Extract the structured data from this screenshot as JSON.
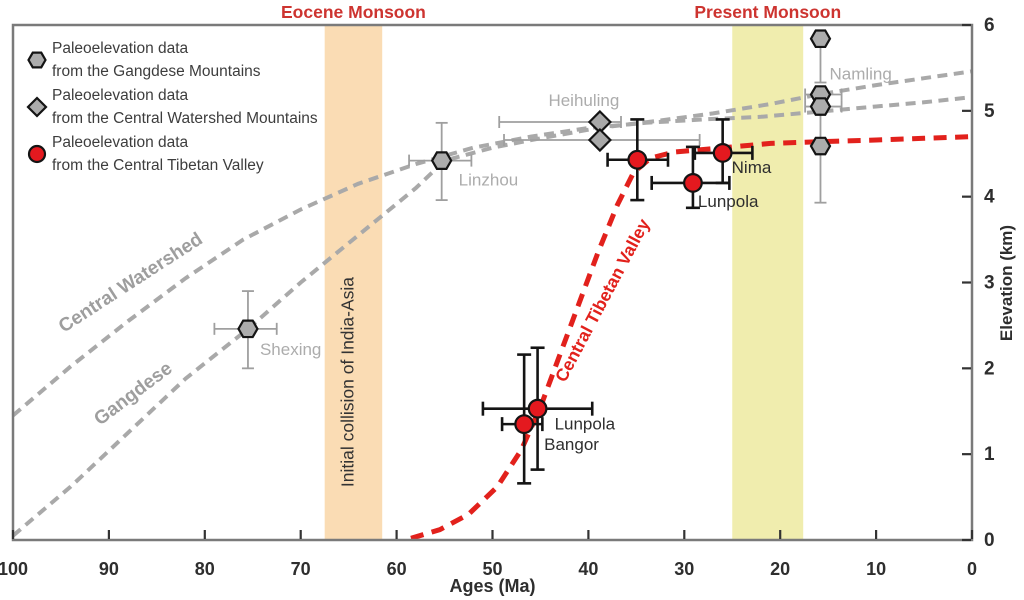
{
  "colors": {
    "accent_red": "#CD3430",
    "marker_red": "#E4191F",
    "marker_gray": "#ACACAC",
    "marker_stroke": "#141414",
    "curve_gray": "#A9A9A9",
    "curve_red": "#E2211C",
    "band_orange": "#FADCB4",
    "band_yellow": "#F0EDAE",
    "text_dark": "#2E2E2E",
    "text_gray": "#ACACAC",
    "frame_gray": "#7A7A7A",
    "error_gray": "#9F9F9F",
    "error_black": "#141414"
  },
  "legend": {
    "items": [
      {
        "marker": "hexagon",
        "line1": "Paleoelevation data",
        "line2": "from the Gangdese Mountains"
      },
      {
        "marker": "diamond",
        "line1": "Paleoelevation data",
        "line2": "from the Central Watershed Mountains"
      },
      {
        "marker": "circle",
        "line1": "Paleoelevation data",
        "line2": "from the Central Tibetan Valley"
      }
    ]
  },
  "chart_data": {
    "type": "scatter",
    "xlabel": "Ages (Ma)",
    "ylabel": "Elevation (km)",
    "x_range": [
      100,
      0
    ],
    "y_range": [
      0,
      6
    ],
    "x_ticks": [
      100,
      90,
      80,
      70,
      60,
      50,
      40,
      30,
      20,
      10,
      0
    ],
    "y_ticks": [
      0,
      1,
      2,
      3,
      4,
      5,
      6
    ],
    "bands": [
      {
        "label": "Eocene Monsoon",
        "x_from": 67.5,
        "x_to": 61.5,
        "color": "#FADCB4",
        "annotation": "Initial collision of India-Asia"
      },
      {
        "label": "Present Monsoon",
        "x_from": 25.0,
        "x_to": 17.6,
        "color": "#F0EDAE"
      }
    ],
    "curves": [
      {
        "name": "Gangdese",
        "label": "Gangdese",
        "color": "#A9A9A9",
        "width": 4,
        "dash": "10,6.5",
        "label_age": 87.1,
        "label_elev": 1.65,
        "label_angle": -37,
        "label_color": "#9E9E9E",
        "label_size": 19,
        "points": [
          [
            100,
            0.05
          ],
          [
            94,
            0.62
          ],
          [
            88,
            1.25
          ],
          [
            82,
            1.88
          ],
          [
            75.5,
            2.46
          ],
          [
            70,
            3.0
          ],
          [
            64,
            3.55
          ],
          [
            58,
            4.1
          ],
          [
            55,
            4.42
          ],
          [
            50,
            4.57
          ],
          [
            45,
            4.68
          ],
          [
            39,
            4.8
          ],
          [
            33,
            4.88
          ],
          [
            27,
            4.97
          ],
          [
            21,
            5.08
          ],
          [
            16,
            5.19
          ],
          [
            10,
            5.3
          ],
          [
            5,
            5.38
          ],
          [
            0,
            5.46
          ]
        ]
      },
      {
        "name": "Central Watershed",
        "label": "Central Watershed",
        "color": "#A9A9A9",
        "width": 4,
        "dash": "10,6.5",
        "label_age": 87.4,
        "label_elev": 2.94,
        "label_angle": -33,
        "label_color": "#9E9E9E",
        "label_size": 19,
        "points": [
          [
            100,
            1.45
          ],
          [
            94,
            2.02
          ],
          [
            88,
            2.55
          ],
          [
            82,
            3.05
          ],
          [
            76,
            3.5
          ],
          [
            70,
            3.85
          ],
          [
            64,
            4.15
          ],
          [
            58,
            4.38
          ],
          [
            52,
            4.57
          ],
          [
            46,
            4.7
          ],
          [
            40,
            4.8
          ],
          [
            34,
            4.86
          ],
          [
            28,
            4.9
          ],
          [
            22,
            4.93
          ],
          [
            16,
            4.99
          ],
          [
            10,
            5.05
          ],
          [
            5,
            5.1
          ],
          [
            0,
            5.16
          ]
        ]
      },
      {
        "name": "Central Tibetan Valley",
        "label": "Central Tibetan Valley",
        "color": "#E2211C",
        "width": 5,
        "dash": "13,8.5",
        "label_age": 38.0,
        "label_elev": 2.76,
        "label_angle": -62,
        "label_color": "#E2211C",
        "label_size": 17.5,
        "points": [
          [
            58.5,
            0.02
          ],
          [
            55.5,
            0.12
          ],
          [
            52.5,
            0.3
          ],
          [
            49.5,
            0.62
          ],
          [
            47,
            1.05
          ],
          [
            45,
            1.55
          ],
          [
            43,
            2.15
          ],
          [
            41,
            2.75
          ],
          [
            39,
            3.35
          ],
          [
            37,
            3.9
          ],
          [
            35.3,
            4.28
          ],
          [
            33.5,
            4.45
          ],
          [
            31,
            4.52
          ],
          [
            28,
            4.55
          ],
          [
            25,
            4.58
          ],
          [
            21,
            4.62
          ],
          [
            16,
            4.64
          ],
          [
            10,
            4.66
          ],
          [
            5,
            4.68
          ],
          [
            0,
            4.7
          ]
        ]
      }
    ],
    "series": [
      {
        "name": "Gangdese Mountains",
        "marker": "hexagon",
        "marker_fill": "#ACACAC",
        "marker_stroke": "#141414",
        "err_color": "#9F9F9F",
        "err_width": 1.8,
        "cap": 6,
        "label_color": "#ACACAC",
        "points": [
          {
            "label": "Shexing",
            "age": 75.5,
            "elev": 2.46,
            "age_err": [
              79,
              72.5
            ],
            "elev_err": [
              2.9,
              2.0
            ],
            "label_dx": 12,
            "label_dy": 26
          },
          {
            "label": "Linzhou",
            "age": 55.3,
            "elev": 4.42,
            "age_err": [
              58.7,
              52.2
            ],
            "elev_err": [
              4.86,
              3.96
            ],
            "label_dx": 17,
            "label_dy": 25
          },
          {
            "label": "Namling",
            "age": 15.8,
            "elev": 5.84,
            "elev_err": [
              5.84,
              5.33
            ],
            "label_dx": 9,
            "label_dy": 41
          },
          {
            "age": 15.8,
            "elev": 5.19,
            "age_err": [
              17.4,
              13.6
            ]
          },
          {
            "age": 15.8,
            "elev": 5.05,
            "age_err": [
              17.4,
              13.6
            ]
          },
          {
            "age": 15.8,
            "elev": 4.59,
            "elev_err": [
              5.05,
              3.93
            ]
          }
        ]
      },
      {
        "name": "Central Watershed Mountains",
        "marker": "diamond",
        "marker_fill": "#A8A8A8",
        "marker_stroke": "#141414",
        "err_color": "#9F9F9F",
        "err_width": 1.8,
        "cap": 6,
        "label_color": "#ACACAC",
        "points": [
          {
            "label": "Heihuling",
            "age": 38.8,
            "elev": 4.87,
            "age_err": [
              49.3,
              36.6
            ],
            "label_dx": -16,
            "label_dy": -16,
            "label_anchor": "middle"
          },
          {
            "age": 38.8,
            "elev": 4.66,
            "age_err": [
              48.8,
              28.4
            ]
          }
        ]
      },
      {
        "name": "Central Tibetan Valley",
        "marker": "circle",
        "marker_fill": "#E4191F",
        "marker_stroke": "#141414",
        "err_color": "#141414",
        "err_width": 2.6,
        "cap": 7,
        "label_color": "#2E2E2E",
        "points": [
          {
            "label": "Bangor",
            "age": 46.7,
            "elev": 1.35,
            "age_err": [
              49,
              44.8
            ],
            "elev_err": [
              2.16,
              0.66
            ],
            "label_dx": 20,
            "label_dy": 26
          },
          {
            "label": "Lunpola",
            "age": 45.3,
            "elev": 1.53,
            "age_err": [
              51,
              39.6
            ],
            "elev_err": [
              2.24,
              0.82
            ],
            "label_dx": 17,
            "label_dy": 21
          },
          {
            "age": 34.9,
            "elev": 4.43,
            "age_err": [
              38,
              31.7
            ],
            "elev_err": [
              4.9,
              3.96
            ]
          },
          {
            "label": "Lunpola",
            "age": 29.1,
            "elev": 4.16,
            "age_err": [
              33.4,
              25.3
            ],
            "elev_err": [
              4.58,
              3.87
            ],
            "label_dx": 5,
            "label_dy": 24
          },
          {
            "label": "Nima",
            "age": 26.0,
            "elev": 4.51,
            "age_err": [
              28.9,
              22.9
            ],
            "elev_err": [
              4.9,
              4.16
            ],
            "label_dx": 9,
            "label_dy": 20
          }
        ]
      }
    ]
  }
}
